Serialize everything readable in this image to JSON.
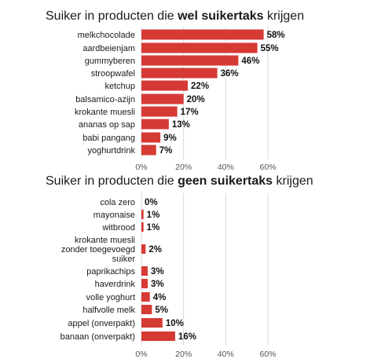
{
  "accent_color": "#d63a35",
  "grid_color": "#d9d9d9",
  "chart_data": [
    {
      "type": "bar",
      "orientation": "horizontal",
      "title_parts": [
        "Suiker in producten die ",
        "wel suikertaks",
        " krijgen"
      ],
      "categories": [
        "melkchocolade",
        "aardbeienjam",
        "gummyberen",
        "stroopwafel",
        "ketchup",
        "balsamico-azijn",
        "krokante muesli",
        "ananas op sap",
        "babi pangang",
        "yoghurtdrink"
      ],
      "values": [
        58,
        55,
        46,
        36,
        22,
        20,
        17,
        13,
        9,
        7
      ],
      "value_labels": [
        "58%",
        "55%",
        "46%",
        "36%",
        "22%",
        "20%",
        "17%",
        "13%",
        "9%",
        "7%"
      ],
      "xlim": [
        0,
        60
      ],
      "ticks": [
        "0%",
        "20%",
        "40%",
        "60%"
      ],
      "grid": true
    },
    {
      "type": "bar",
      "orientation": "horizontal",
      "title_parts": [
        "Suiker in producten die ",
        "geen suikertaks",
        " krijgen"
      ],
      "categories": [
        "cola zero",
        "mayonaise",
        "witbrood",
        "krokante muesli zonder toegevoegd suiker",
        "paprikachips",
        "haverdrink",
        "volle yoghurt",
        "halfvolle melk",
        "appel (onverpakt)",
        "banaan (onverpakt)"
      ],
      "category_lines": [
        [
          "cola zero"
        ],
        [
          "mayonaise"
        ],
        [
          "witbrood"
        ],
        [
          "krokante muesli",
          "zonder toegevoegd",
          "suiker"
        ],
        [
          "paprikachips"
        ],
        [
          "haverdrink"
        ],
        [
          "volle yoghurt"
        ],
        [
          "halfvolle melk"
        ],
        [
          "appel (onverpakt)"
        ],
        [
          "banaan (onverpakt)"
        ]
      ],
      "values": [
        0,
        1,
        1,
        2,
        3,
        3,
        4,
        5,
        10,
        16
      ],
      "value_labels": [
        "0%",
        "1%",
        "1%",
        "2%",
        "3%",
        "3%",
        "4%",
        "5%",
        "10%",
        "16%"
      ],
      "xlim": [
        0,
        60
      ],
      "ticks": [
        "0%",
        "20%",
        "40%",
        "60%"
      ],
      "grid": true
    }
  ]
}
